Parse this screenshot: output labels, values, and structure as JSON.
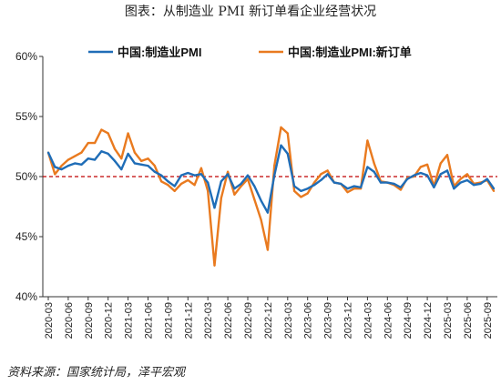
{
  "title": "图表：从制造业 PMI 新订单看企业经营状况",
  "source": "资料来源：国家统计局，泽平宏观",
  "chart_data": {
    "type": "line",
    "x": [
      "2020-03",
      "2020-04",
      "2020-05",
      "2020-06",
      "2020-07",
      "2020-08",
      "2020-09",
      "2020-10",
      "2020-11",
      "2020-12",
      "2021-01",
      "2021-02",
      "2021-03",
      "2021-04",
      "2021-05",
      "2021-06",
      "2021-07",
      "2021-08",
      "2021-09",
      "2021-10",
      "2021-11",
      "2021-12",
      "2022-01",
      "2022-02",
      "2022-03",
      "2022-04",
      "2022-05",
      "2022-06",
      "2022-07",
      "2022-08",
      "2022-09",
      "2022-10",
      "2022-11",
      "2022-12",
      "2023-01",
      "2023-02",
      "2023-03",
      "2023-04",
      "2023-05",
      "2023-06",
      "2023-07",
      "2023-08",
      "2023-09",
      "2023-10",
      "2023-11",
      "2023-12",
      "2024-01",
      "2024-02",
      "2024-03",
      "2024-04",
      "2024-05",
      "2024-06",
      "2024-07",
      "2024-08",
      "2024-09",
      "2024-10",
      "2024-11",
      "2024-12",
      "2025-01",
      "2025-02",
      "2025-03",
      "2025-04",
      "2025-05",
      "2025-06",
      "2025-07",
      "2025-08",
      "2025-09",
      "2025-10"
    ],
    "xticks": [
      "2020-03",
      "2020-06",
      "2020-09",
      "2020-12",
      "2021-03",
      "2021-06",
      "2021-09",
      "2021-12",
      "2022-03",
      "2022-06",
      "2022-09",
      "2022-12",
      "2023-03",
      "2023-06",
      "2023-09",
      "2023-12",
      "2024-03",
      "2024-06",
      "2024-09",
      "2024-12",
      "2025-03",
      "2025-06",
      "2025-09"
    ],
    "yticks": [
      40,
      45,
      50,
      55,
      60
    ],
    "ytick_labels": [
      "40%",
      "45%",
      "50%",
      "55%",
      "60%"
    ],
    "ylim": [
      40,
      60
    ],
    "reference_line": {
      "y": 50,
      "color": "#c00000",
      "style": "dashed"
    },
    "grid": false,
    "legend_position": "top",
    "series": [
      {
        "name": "中国:制造业PMI",
        "color": "#1f6db7",
        "values": [
          52.0,
          50.8,
          50.6,
          50.9,
          51.1,
          51.0,
          51.5,
          51.4,
          52.1,
          51.9,
          51.3,
          50.6,
          51.9,
          51.1,
          51.0,
          50.9,
          50.4,
          50.1,
          49.6,
          49.2,
          50.1,
          50.3,
          50.1,
          50.2,
          49.5,
          47.4,
          49.6,
          50.2,
          49.0,
          49.4,
          50.1,
          49.2,
          48.0,
          47.0,
          50.1,
          52.6,
          51.9,
          49.2,
          48.8,
          49.0,
          49.3,
          49.7,
          50.2,
          49.5,
          49.4,
          49.0,
          49.2,
          49.1,
          50.8,
          50.4,
          49.5,
          49.5,
          49.4,
          49.1,
          49.8,
          50.1,
          50.3,
          50.1,
          49.1,
          50.2,
          50.5,
          49.0,
          49.5,
          49.7,
          49.3,
          49.4,
          49.8,
          49.0
        ]
      },
      {
        "name": "中国:制造业PMI:新订单",
        "color": "#e97a1f",
        "values": [
          52.0,
          50.2,
          50.9,
          51.4,
          51.7,
          52.0,
          52.8,
          52.8,
          53.9,
          53.6,
          52.3,
          51.5,
          53.6,
          52.0,
          51.3,
          51.5,
          50.9,
          49.6,
          49.3,
          48.8,
          49.4,
          49.7,
          49.3,
          50.7,
          48.8,
          42.6,
          48.2,
          50.4,
          48.5,
          49.2,
          49.8,
          48.1,
          46.4,
          43.9,
          50.9,
          54.1,
          53.6,
          48.8,
          48.3,
          48.6,
          49.5,
          50.2,
          50.5,
          49.5,
          49.4,
          48.7,
          49.0,
          49.0,
          53.0,
          51.1,
          49.6,
          49.5,
          49.3,
          48.9,
          49.9,
          50.0,
          50.8,
          51.0,
          49.2,
          51.1,
          51.8,
          49.2,
          49.8,
          50.2,
          49.4,
          49.5,
          49.7,
          48.8
        ]
      }
    ]
  }
}
